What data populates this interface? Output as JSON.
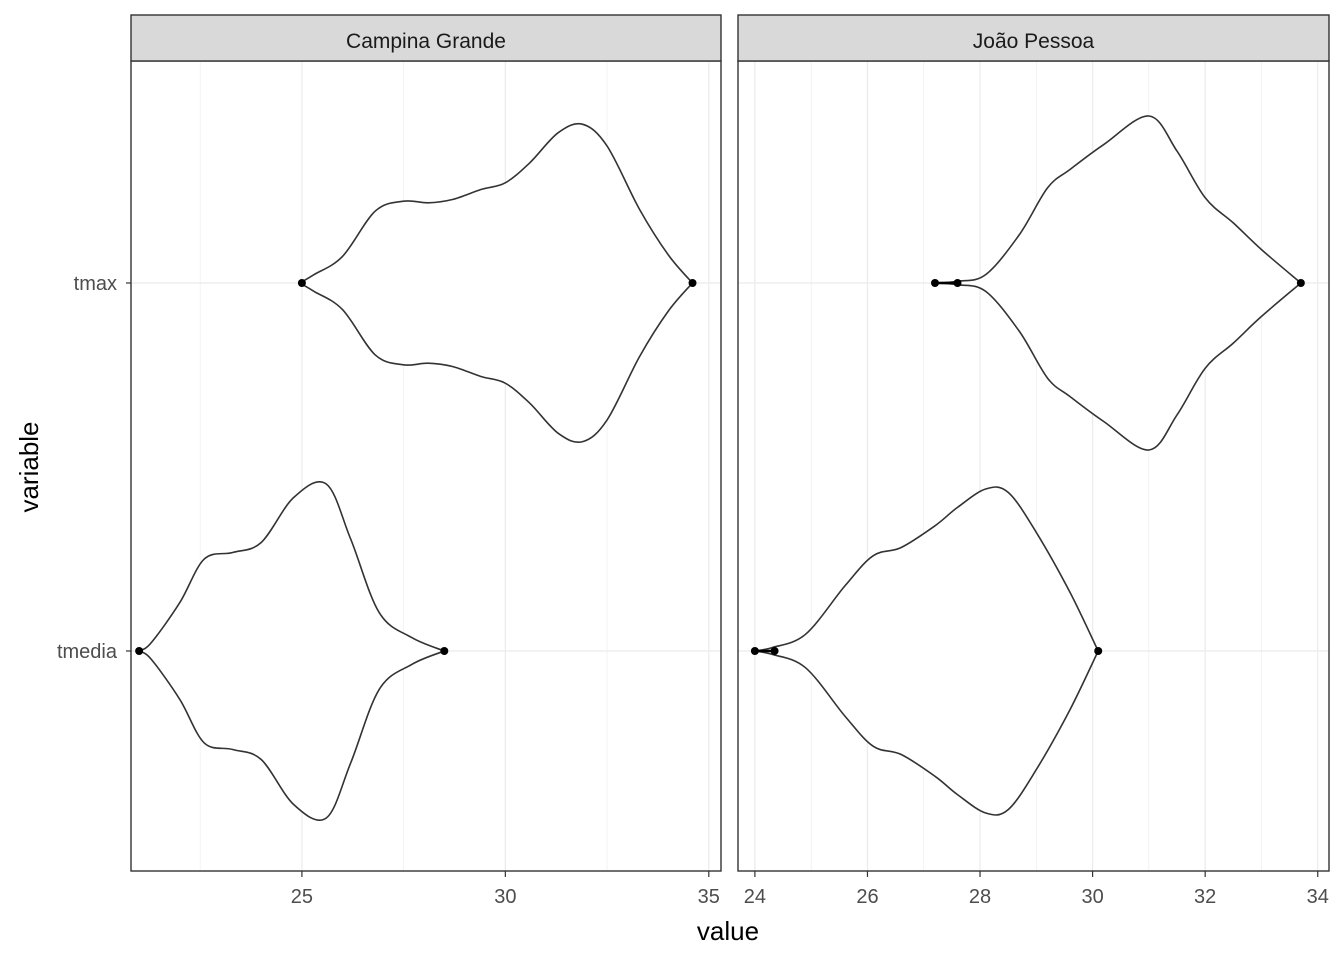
{
  "chart_data": {
    "type": "violin",
    "xlabel": "value",
    "ylabel": "variable",
    "categories": [
      "tmax",
      "tmedia"
    ],
    "grid": true,
    "legend": "none",
    "colors": {
      "strip": "#d9d9d9",
      "grid": "#ebebeb",
      "frame": "#333333",
      "outline": "#333333",
      "point": "#000000"
    },
    "panels": [
      {
        "title": "Campina Grande",
        "xlim": [
          20.8,
          35.3
        ],
        "xticks": [
          25,
          30,
          35
        ],
        "violins": [
          {
            "category": "tmax",
            "profile": [
              [
                24.95,
                0
              ],
              [
                25.3,
                0.05
              ],
              [
                26,
                0.16
              ],
              [
                26.8,
                0.43
              ],
              [
                27.5,
                0.49
              ],
              [
                28.1,
                0.48
              ],
              [
                28.7,
                0.5
              ],
              [
                29.4,
                0.56
              ],
              [
                30,
                0.6
              ],
              [
                30.6,
                0.72
              ],
              [
                31.3,
                0.9
              ],
              [
                31.9,
                0.95
              ],
              [
                32.5,
                0.82
              ],
              [
                33.3,
                0.44
              ],
              [
                34,
                0.17
              ],
              [
                34.6,
                0
              ]
            ],
            "outliers": [
              25.0,
              34.6
            ]
          },
          {
            "category": "tmedia",
            "profile": [
              [
                21.0,
                0
              ],
              [
                21.3,
                0.05
              ],
              [
                22,
                0.29
              ],
              [
                22.6,
                0.55
              ],
              [
                23.3,
                0.59
              ],
              [
                24,
                0.65
              ],
              [
                24.8,
                0.92
              ],
              [
                25.6,
                1.0
              ],
              [
                26.2,
                0.67
              ],
              [
                26.9,
                0.23
              ],
              [
                27.7,
                0.08
              ],
              [
                28.5,
                0
              ]
            ],
            "outliers": [
              21.0,
              28.5
            ]
          }
        ]
      },
      {
        "title": "João Pessoa",
        "xlim": [
          23.7,
          34.2
        ],
        "xticks": [
          24,
          26,
          28,
          30,
          32,
          34
        ],
        "violins": [
          {
            "category": "tmax",
            "profile": [
              [
                27.2,
                0
              ],
              [
                27.6,
                0.01
              ],
              [
                28.1,
                0.05
              ],
              [
                28.7,
                0.29
              ],
              [
                29.2,
                0.57
              ],
              [
                29.6,
                0.68
              ],
              [
                30.2,
                0.83
              ],
              [
                31,
                1.0
              ],
              [
                31.5,
                0.79
              ],
              [
                32,
                0.51
              ],
              [
                32.5,
                0.36
              ],
              [
                33,
                0.2
              ],
              [
                33.7,
                0
              ]
            ],
            "outliers": [
              27.2,
              27.6,
              33.7
            ]
          },
          {
            "category": "tmedia",
            "profile": [
              [
                24.0,
                0
              ],
              [
                24.3,
                0.02
              ],
              [
                24.9,
                0.1
              ],
              [
                25.6,
                0.39
              ],
              [
                26.1,
                0.57
              ],
              [
                26.6,
                0.62
              ],
              [
                27.2,
                0.75
              ],
              [
                27.6,
                0.86
              ],
              [
                28.1,
                0.97
              ],
              [
                28.5,
                0.95
              ],
              [
                29,
                0.71
              ],
              [
                29.6,
                0.35
              ],
              [
                30.1,
                0
              ]
            ],
            "outliers": [
              24.0,
              24.35,
              30.1
            ]
          }
        ]
      }
    ]
  }
}
